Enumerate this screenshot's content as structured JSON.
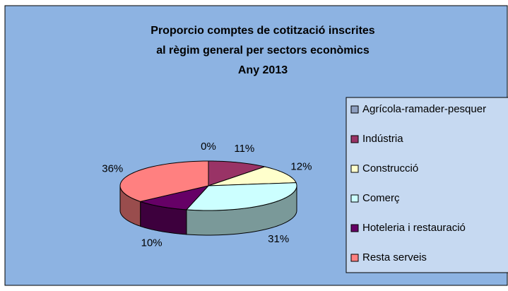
{
  "chart_data": {
    "type": "pie3d",
    "title": [
      "Proporcio comptes de cotització inscrites",
      "al règim general per sectors econòmics",
      "Any 2013"
    ],
    "categories": [
      "Agrícola-ramader-pesquer",
      "Indústria",
      "Construcció",
      "Comerç",
      "Hoteleria i restauració",
      "Resta serveis"
    ],
    "values": [
      0,
      11,
      12,
      31,
      10,
      36
    ],
    "value_labels": [
      "0%",
      "11%",
      "12%",
      "31%",
      "10%",
      "36%"
    ],
    "colors": [
      "#8e9fc0",
      "#993366",
      "#ffffcc",
      "#ccffff",
      "#660066",
      "#ff8080"
    ],
    "legend": "right"
  }
}
